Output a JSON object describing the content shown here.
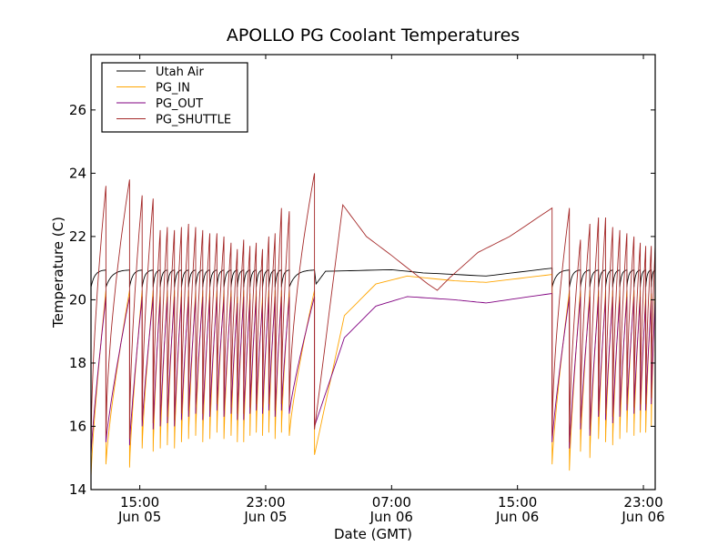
{
  "chart_data": {
    "type": "line",
    "title": "APOLLO PG Coolant Temperatures",
    "xlabel": "Date (GMT)",
    "ylabel": "Temperature (C)",
    "x_units": "hours since Jun 05 00:00 GMT",
    "xlim": [
      11.9,
      47.75
    ],
    "ylim": [
      14,
      27.75
    ],
    "yticks": [
      14,
      16,
      18,
      20,
      22,
      24,
      26
    ],
    "xticks": [
      {
        "value": 15,
        "line1": "15:00",
        "line2": "Jun 05"
      },
      {
        "value": 23,
        "line1": "23:00",
        "line2": "Jun 05"
      },
      {
        "value": 31,
        "line1": "07:00",
        "line2": "Jun 06"
      },
      {
        "value": 39,
        "line1": "15:00",
        "line2": "Jun 06"
      },
      {
        "value": 47,
        "line1": "23:00",
        "line2": "Jun 06"
      }
    ],
    "legend": {
      "position": "top-left"
    },
    "series": [
      {
        "name": "Utah Air",
        "color": "#000000"
      },
      {
        "name": "PG_IN",
        "color": "#ffa500"
      },
      {
        "name": "PG_OUT",
        "color": "#800080"
      },
      {
        "name": "PG_SHUTTLE",
        "color": "#a52a2a"
      }
    ],
    "segments": [
      {
        "phase": "cycling",
        "start": 11.9,
        "end": 26.1,
        "cycle_times": [
          11.9,
          12.85,
          14.35,
          15.15,
          15.85,
          16.3,
          16.75,
          17.2,
          17.65,
          18.1,
          18.55,
          19.0,
          19.45,
          19.9,
          20.35,
          20.8,
          21.2,
          21.6,
          22.0,
          22.4,
          22.8,
          23.2,
          23.6,
          24.0,
          24.5,
          26.1
        ],
        "shuttle_peaks": [
          23.6,
          23.8,
          23.3,
          23.2,
          22.2,
          22.3,
          22.2,
          22.3,
          22.4,
          22.3,
          22.2,
          22.1,
          22.1,
          22.0,
          21.8,
          21.6,
          21.9,
          21.7,
          21.8,
          21.6,
          22.0,
          22.1,
          22.9,
          22.8,
          24.0,
          24.7
        ],
        "in_mins": [
          14.4,
          14.8,
          14.7,
          15.3,
          15.2,
          15.3,
          15.4,
          15.3,
          15.5,
          15.6,
          15.7,
          15.5,
          15.6,
          15.8,
          15.6,
          15.7,
          15.5,
          15.5,
          15.7,
          15.8,
          15.7,
          15.8,
          15.6,
          15.8,
          15.7,
          15.1
        ]
      },
      {
        "phase": "idle",
        "start": 26.1,
        "end": 41.2,
        "shuttle_points": [
          [
            26.1,
            15.9
          ],
          [
            27.9,
            23.0
          ],
          [
            29.4,
            22.0
          ],
          [
            31.0,
            21.4
          ],
          [
            33.3,
            20.5
          ],
          [
            33.9,
            20.3
          ],
          [
            34.7,
            20.7
          ],
          [
            36.5,
            21.5
          ],
          [
            38.5,
            22.0
          ],
          [
            41.2,
            22.9
          ]
        ],
        "air_points": [
          [
            26.2,
            20.5
          ],
          [
            26.8,
            20.9
          ],
          [
            31,
            20.95
          ],
          [
            33,
            20.85
          ],
          [
            37,
            20.75
          ],
          [
            41.2,
            21.0
          ]
        ],
        "in_points": [
          [
            26.1,
            15.1
          ],
          [
            28,
            19.5
          ],
          [
            30,
            20.5
          ],
          [
            32,
            20.75
          ],
          [
            35,
            20.6
          ],
          [
            37,
            20.55
          ],
          [
            41.2,
            20.8
          ]
        ],
        "out_points": [
          [
            26.1,
            16.0
          ],
          [
            28,
            18.8
          ],
          [
            30,
            19.8
          ],
          [
            32,
            20.1
          ],
          [
            35,
            20.0
          ],
          [
            37,
            19.9
          ],
          [
            41.2,
            20.2
          ]
        ]
      },
      {
        "phase": "cycling",
        "start": 41.2,
        "end": 47.75,
        "cycle_times": [
          41.2,
          42.3,
          43.0,
          43.6,
          44.15,
          44.6,
          45.05,
          45.5,
          45.95,
          46.4,
          46.8,
          47.15,
          47.5,
          47.75
        ],
        "shuttle_peaks": [
          22.9,
          21.9,
          22.4,
          22.6,
          22.6,
          22.3,
          22.2,
          22.1,
          22.0,
          21.8,
          21.7,
          21.7,
          21.7,
          21.0
        ],
        "in_mins": [
          14.8,
          14.6,
          15.2,
          15.0,
          15.6,
          15.5,
          15.4,
          15.6,
          15.8,
          15.7,
          15.8,
          15.8,
          16.0,
          16.0
        ]
      }
    ]
  }
}
